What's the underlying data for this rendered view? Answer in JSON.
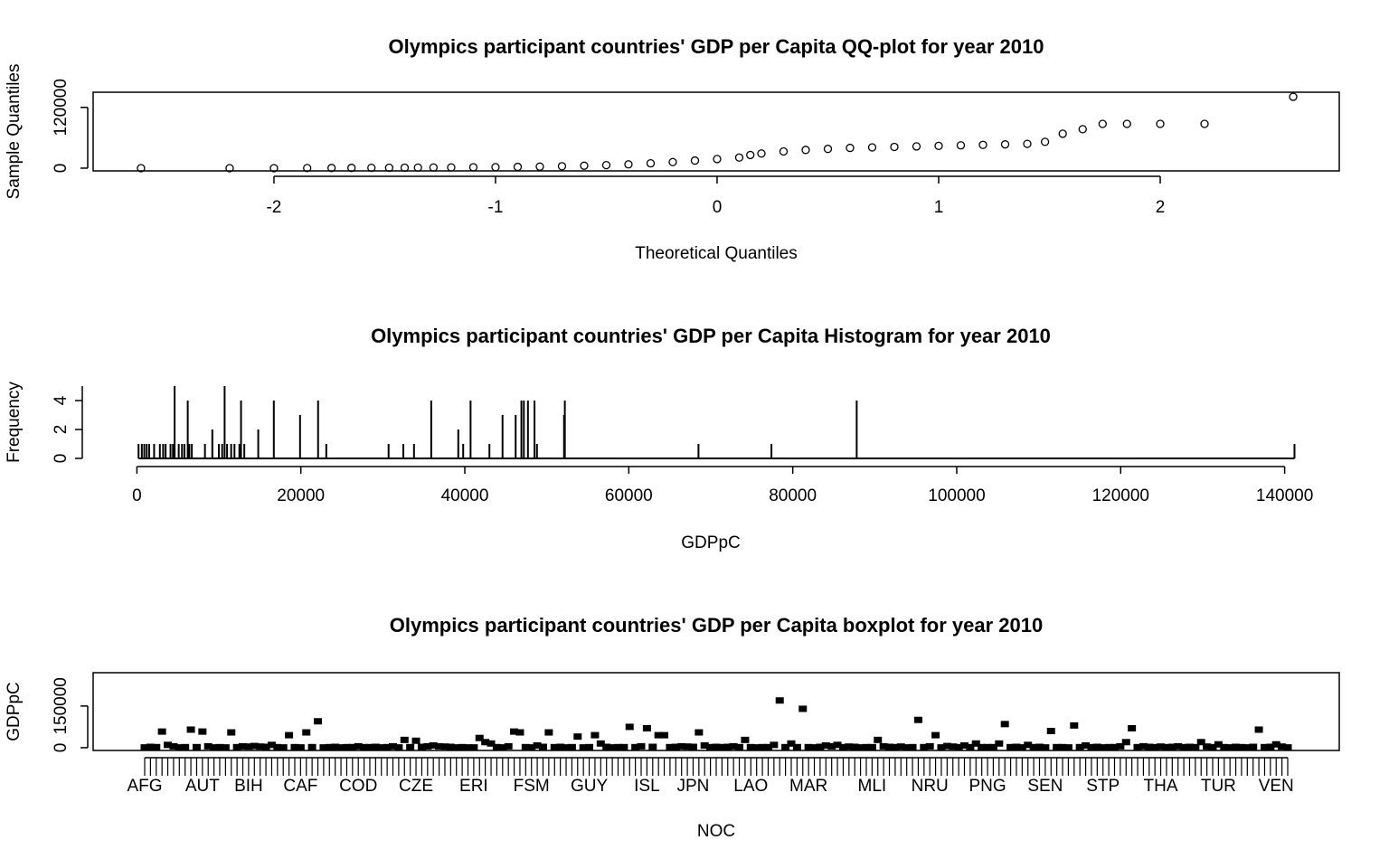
{
  "chart_data": [
    {
      "type": "scatter",
      "title": "Olympics participant countries' GDP per Capita QQ-plot for year  2010",
      "x_label": "Theoretical Quantiles",
      "y_label": "Sample Quantiles",
      "x": [
        -2.6,
        -2.2,
        -2.0,
        -1.85,
        -1.74,
        -1.65,
        -1.56,
        -1.48,
        -1.41,
        -1.35,
        -1.28,
        -1.2,
        -1.1,
        -1.0,
        -0.9,
        -0.8,
        -0.7,
        -0.6,
        -0.5,
        -0.4,
        -0.3,
        -0.2,
        -0.1,
        0.0,
        0.1,
        0.15,
        0.2,
        0.3,
        0.4,
        0.5,
        0.6,
        0.7,
        0.8,
        0.9,
        1.0,
        1.1,
        1.2,
        1.3,
        1.4,
        1.48,
        1.56,
        1.65,
        1.74,
        1.85,
        2.0,
        2.2,
        2.6
      ],
      "values": [
        0,
        0,
        0,
        200,
        300,
        500,
        600,
        800,
        900,
        1100,
        1300,
        1500,
        1800,
        2000,
        2500,
        3000,
        3800,
        4800,
        6000,
        7500,
        9500,
        12000,
        15000,
        18000,
        21000,
        26000,
        29000,
        33000,
        36000,
        38000,
        40000,
        41000,
        42000,
        43000,
        44000,
        45000,
        46000,
        47000,
        48000,
        52000,
        68000,
        77000,
        87500,
        87500,
        87500,
        87500,
        141000
      ],
      "color": "#000000",
      "xlim": [
        -2.816,
        2.808
      ],
      "ylim": [
        -5400,
        150000
      ],
      "xticks": [
        -2,
        -1,
        0,
        1,
        2
      ],
      "yticks": [
        0,
        120000
      ]
    },
    {
      "type": "bar",
      "title": "Olympics participant countries' GDP per Capita Histogram for year  2010",
      "x_label": "GDPpC",
      "y_label": "Frequency",
      "x": [
        200,
        600,
        900,
        1200,
        1500,
        2100,
        2800,
        3200,
        3500,
        4100,
        4400,
        4600,
        5100,
        5500,
        5800,
        6200,
        6400,
        6700,
        8300,
        9200,
        10000,
        10400,
        10700,
        11000,
        11500,
        11900,
        12500,
        12700,
        13100,
        14800,
        16700,
        19900,
        22100,
        23100,
        30700,
        32500,
        33800,
        35900,
        39200,
        39800,
        40700,
        43000,
        44600,
        46200,
        46900,
        47200,
        47700,
        48500,
        48800,
        52100,
        52200,
        68500,
        77400,
        87800,
        141200
      ],
      "values": [
        1,
        1,
        1,
        1,
        1,
        1,
        1,
        1,
        1,
        1,
        1,
        5,
        1,
        1,
        1,
        4,
        1,
        1,
        1,
        2,
        1,
        1,
        5,
        1,
        1,
        1,
        1,
        4,
        1,
        2,
        4,
        3,
        4,
        1,
        1,
        1,
        1,
        4,
        2,
        1,
        4,
        1,
        3,
        3,
        4,
        4,
        4,
        4,
        1,
        3,
        4,
        1,
        1,
        4,
        1
      ],
      "color": "#000000",
      "xlim": [
        -6000,
        146000
      ],
      "ylim": [
        0,
        5
      ],
      "xticks": [
        0,
        20000,
        40000,
        60000,
        80000,
        100000,
        120000,
        140000
      ],
      "yticks": [
        0,
        2,
        4
      ]
    },
    {
      "type": "box",
      "title": "Olympics participant countries' GDP per Capita boxplot for year  2010",
      "x_label": "NOC",
      "y_label": "GDPpC",
      "categories": [
        "AFG",
        null,
        null,
        null,
        null,
        null,
        null,
        null,
        null,
        null,
        "AUT",
        null,
        null,
        null,
        null,
        null,
        null,
        null,
        "BIH",
        null,
        null,
        null,
        null,
        null,
        null,
        null,
        null,
        "CAF",
        null,
        null,
        null,
        null,
        null,
        null,
        null,
        null,
        null,
        "COD",
        null,
        null,
        null,
        null,
        null,
        null,
        null,
        null,
        null,
        "CZE",
        null,
        null,
        null,
        null,
        null,
        null,
        null,
        null,
        null,
        "ERI",
        null,
        null,
        null,
        null,
        null,
        null,
        null,
        null,
        null,
        "FSM",
        null,
        null,
        null,
        null,
        null,
        null,
        null,
        null,
        null,
        "GUY",
        null,
        null,
        null,
        null,
        null,
        null,
        null,
        null,
        null,
        "ISL",
        null,
        null,
        null,
        null,
        null,
        null,
        null,
        "JPN",
        null,
        null,
        null,
        null,
        null,
        null,
        null,
        null,
        null,
        "LAO",
        null,
        null,
        null,
        null,
        null,
        null,
        null,
        null,
        null,
        "MAR",
        null,
        null,
        null,
        null,
        null,
        null,
        null,
        null,
        null,
        null,
        "MLI",
        null,
        null,
        null,
        null,
        null,
        null,
        null,
        null,
        null,
        "NRU",
        null,
        null,
        null,
        null,
        null,
        null,
        null,
        null,
        null,
        "PNG",
        null,
        null,
        null,
        null,
        null,
        null,
        null,
        null,
        null,
        "SEN",
        null,
        null,
        null,
        null,
        null,
        null,
        null,
        null,
        null,
        "STP",
        null,
        null,
        null,
        null,
        null,
        null,
        null,
        null,
        null,
        "THA",
        null,
        null,
        null,
        null,
        null,
        null,
        null,
        null,
        null,
        "TUR",
        null,
        null,
        null,
        null,
        null,
        null,
        null,
        null,
        null,
        "VEN",
        null,
        null
      ],
      "values": [
        1000,
        3000,
        2000,
        58000,
        10000,
        5000,
        1000,
        2000,
        65000,
        2000,
        58000,
        5000,
        1000,
        2000,
        1000,
        55000,
        2000,
        5000,
        4000,
        6000,
        4000,
        3000,
        10000,
        2000,
        1000,
        45000,
        2000,
        1000,
        55000,
        2000,
        95000,
        1000,
        2000,
        3000,
        1000,
        2000,
        2000,
        5000,
        2000,
        2000,
        3000,
        1000,
        2000,
        5000,
        1000,
        28000,
        2000,
        25000,
        3000,
        5000,
        8000,
        5000,
        4000,
        3000,
        1000,
        2000,
        1000,
        1000,
        35000,
        20000,
        15000,
        2000,
        1000,
        5000,
        58000,
        55000,
        2000,
        1000,
        8000,
        3000,
        55000,
        2000,
        3000,
        1000,
        2000,
        40000,
        1000,
        2000,
        45000,
        15000,
        3000,
        1000,
        2000,
        2000,
        75000,
        2000,
        5000,
        70000,
        3000,
        45000,
        45000,
        2000,
        3000,
        5000,
        4000,
        3000,
        55000,
        8000,
        2000,
        3000,
        2000,
        3000,
        5000,
        2000,
        28000,
        2000,
        1000,
        2000,
        2000,
        10000,
        170000,
        2000,
        15000,
        2000,
        140000,
        2000,
        1000,
        3000,
        8000,
        5000,
        10000,
        2000,
        4000,
        3000,
        1000,
        2000,
        2000,
        28000,
        5000,
        3000,
        2000,
        4000,
        1000,
        2000,
        100000,
        2000,
        5000,
        45000,
        1000,
        6000,
        4000,
        2000,
        8000,
        2000,
        15000,
        2000,
        2000,
        2000,
        15000,
        85000,
        2000,
        3000,
        1000,
        10000,
        2000,
        3000,
        1000,
        60000,
        2000,
        2000,
        1000,
        80000,
        2000,
        8000,
        2000,
        3000,
        1000,
        2000,
        2000,
        5000,
        20000,
        70000,
        2000,
        5000,
        3000,
        2000,
        4000,
        2000,
        3000,
        5000,
        2000,
        3000,
        2000,
        20000,
        4000,
        2000,
        12000,
        2000,
        1000,
        3000,
        2000,
        1000,
        3000,
        65000,
        2000,
        3000,
        12000,
        4000,
        1000
      ],
      "color": "#000000",
      "ylim": [
        -10000,
        270000
      ],
      "yticks": [
        0,
        150000
      ]
    }
  ]
}
